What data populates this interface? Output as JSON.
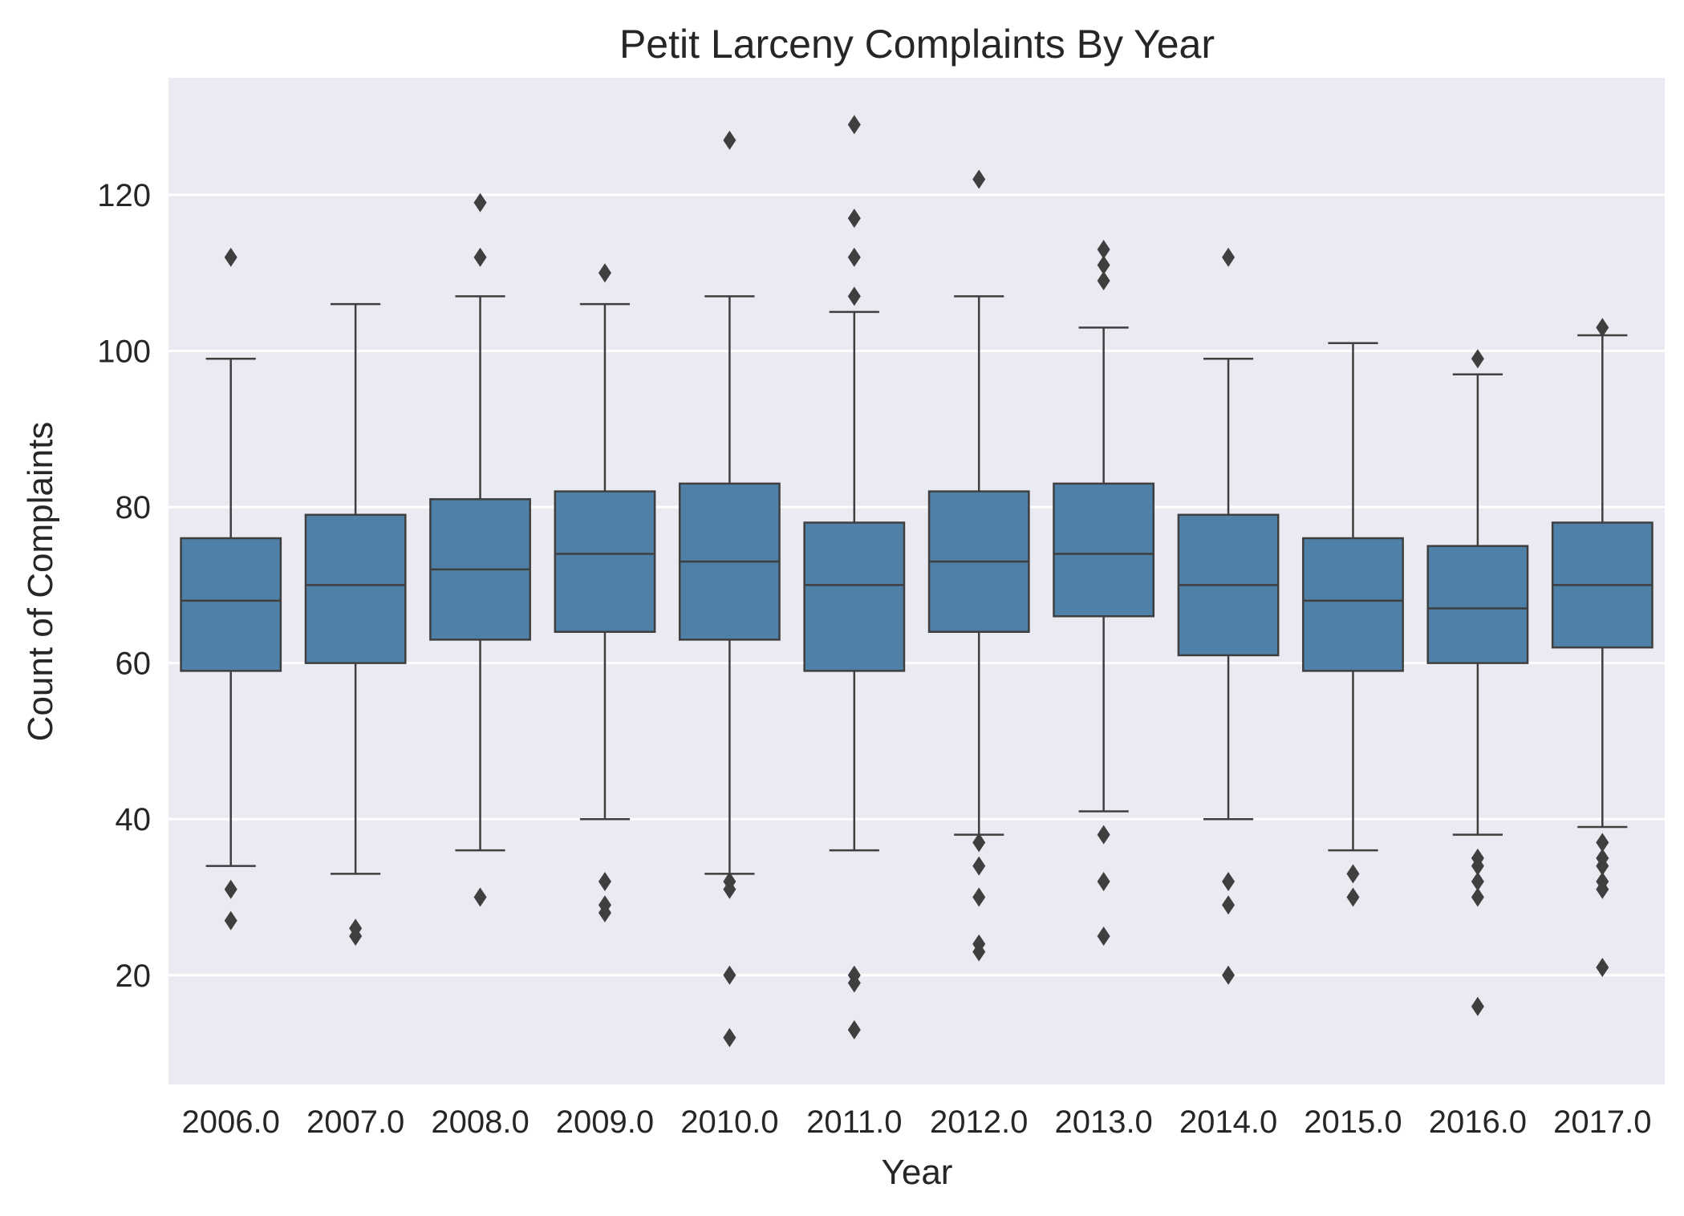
{
  "chart_data": {
    "type": "boxplot",
    "title": "Petit Larceny Complaints By Year",
    "xlabel": "Year",
    "ylabel": "Count of Complaints",
    "ylim": [
      6,
      135
    ],
    "yticks": [
      20,
      40,
      60,
      80,
      100,
      120
    ],
    "grid": true,
    "colors": {
      "background": "#eaeaf2",
      "box_fill": "#4f81a8",
      "line": "#3f3f3f",
      "grid": "#ffffff"
    },
    "categories": [
      "2006.0",
      "2007.0",
      "2008.0",
      "2009.0",
      "2010.0",
      "2011.0",
      "2012.0",
      "2013.0",
      "2014.0",
      "2015.0",
      "2016.0",
      "2017.0"
    ],
    "boxes": [
      {
        "whisker_low": 34,
        "q1": 59,
        "median": 68,
        "q3": 76,
        "whisker_high": 99,
        "outliers": [
          112,
          31,
          27
        ]
      },
      {
        "whisker_low": 33,
        "q1": 60,
        "median": 70,
        "q3": 79,
        "whisker_high": 106,
        "outliers": [
          26,
          25
        ]
      },
      {
        "whisker_low": 36,
        "q1": 63,
        "median": 72,
        "q3": 81,
        "whisker_high": 107,
        "outliers": [
          119,
          112,
          30
        ]
      },
      {
        "whisker_low": 40,
        "q1": 64,
        "median": 74,
        "q3": 82,
        "whisker_high": 106,
        "outliers": [
          110,
          32,
          29,
          28
        ]
      },
      {
        "whisker_low": 33,
        "q1": 63,
        "median": 73,
        "q3": 83,
        "whisker_high": 107,
        "outliers": [
          127,
          32,
          31,
          20,
          12
        ]
      },
      {
        "whisker_low": 36,
        "q1": 59,
        "median": 70,
        "q3": 78,
        "whisker_high": 105,
        "outliers": [
          129,
          117,
          112,
          107,
          20,
          19,
          13
        ]
      },
      {
        "whisker_low": 38,
        "q1": 64,
        "median": 73,
        "q3": 82,
        "whisker_high": 107,
        "outliers": [
          122,
          37,
          34,
          30,
          24,
          23
        ]
      },
      {
        "whisker_low": 41,
        "q1": 66,
        "median": 74,
        "q3": 83,
        "whisker_high": 103,
        "outliers": [
          113,
          111,
          109,
          38,
          32,
          25
        ]
      },
      {
        "whisker_low": 40,
        "q1": 61,
        "median": 70,
        "q3": 79,
        "whisker_high": 99,
        "outliers": [
          112,
          32,
          29,
          20
        ]
      },
      {
        "whisker_low": 36,
        "q1": 59,
        "median": 68,
        "q3": 76,
        "whisker_high": 101,
        "outliers": [
          33,
          30
        ]
      },
      {
        "whisker_low": 38,
        "q1": 60,
        "median": 67,
        "q3": 75,
        "whisker_high": 97,
        "outliers": [
          99,
          35,
          34,
          32,
          30,
          16
        ]
      },
      {
        "whisker_low": 39,
        "q1": 62,
        "median": 70,
        "q3": 78,
        "whisker_high": 102,
        "outliers": [
          103,
          37,
          35,
          34,
          32,
          31,
          21
        ]
      }
    ]
  }
}
